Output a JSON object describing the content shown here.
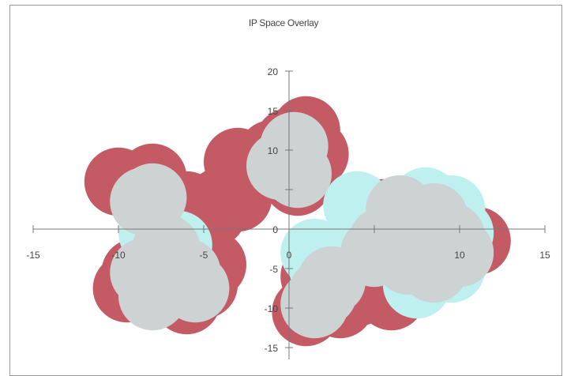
{
  "chart_data": {
    "type": "scatter",
    "title": "IP Space Overlay",
    "xlabel": "",
    "ylabel": "",
    "xlim": [
      -15,
      15
    ],
    "ylim": [
      -15,
      20
    ],
    "x_ticks": [
      -15,
      -10,
      -5,
      0,
      5,
      10,
      15
    ],
    "y_ticks": [
      -15,
      -10,
      -5,
      0,
      5,
      10,
      15,
      20
    ],
    "x_tick_labels": [
      "-15",
      "-10",
      "-5",
      "0",
      "",
      "10",
      "15"
    ],
    "y_tick_labels": [
      "-15",
      "-10",
      "-5",
      "0",
      "",
      "10",
      "15",
      "20"
    ],
    "grid": false,
    "legend": "none",
    "series": [
      {
        "color": "#c45a64",
        "points": [
          [
            -9,
            5
          ],
          [
            -8,
            6.5
          ],
          [
            -10,
            6
          ],
          [
            -8.5,
            3.5
          ],
          [
            -6,
            3
          ],
          [
            -4.5,
            2
          ],
          [
            -4,
            3.5
          ],
          [
            -3,
            4
          ],
          [
            -2.5,
            7
          ],
          [
            -3,
            8.5
          ],
          [
            -1,
            9.5
          ],
          [
            0,
            11
          ],
          [
            1,
            12.5
          ],
          [
            1.5,
            9.5
          ],
          [
            0.5,
            6
          ],
          [
            -8,
            -4
          ],
          [
            -9,
            -5.5
          ],
          [
            -9.5,
            -7.5
          ],
          [
            -7.5,
            -8
          ],
          [
            -6,
            -9
          ],
          [
            -5,
            -7
          ],
          [
            -4.5,
            -4.5
          ],
          [
            -6.5,
            -3.5
          ],
          [
            1.5,
            -6
          ],
          [
            2.5,
            -7.5
          ],
          [
            3,
            -9.5
          ],
          [
            1,
            -10.5
          ],
          [
            4,
            -8
          ],
          [
            5.5,
            2
          ],
          [
            6.5,
            -3
          ],
          [
            7.5,
            -6
          ],
          [
            9,
            -4
          ],
          [
            10,
            -2
          ],
          [
            11,
            -1.5
          ],
          [
            9,
            0
          ],
          [
            6,
            -8.5
          ],
          [
            5.5,
            0
          ]
        ],
        "radius": 2
      },
      {
        "color": "#bff0f0",
        "points": [
          [
            4,
            3
          ],
          [
            8,
            3.5
          ],
          [
            9.5,
            2.5
          ],
          [
            10,
            -0.5
          ],
          [
            9.5,
            -5
          ],
          [
            7.5,
            -7
          ],
          [
            -8,
            -0.5
          ],
          [
            -6.5,
            -2
          ],
          [
            1.5,
            -3
          ],
          [
            2,
            -5
          ]
        ],
        "radius": 2
      },
      {
        "color": "#cdd3d3",
        "points": [
          [
            -8,
            4
          ],
          [
            -8.5,
            3.5
          ],
          [
            0,
            9
          ],
          [
            0.3,
            10.5
          ],
          [
            -0.5,
            8
          ],
          [
            0.5,
            7
          ],
          [
            -7.5,
            -4
          ],
          [
            -8.5,
            -5.5
          ],
          [
            -7,
            -7
          ],
          [
            -8,
            -8.5
          ],
          [
            -6,
            -5.5
          ],
          [
            -5.5,
            -7.5
          ],
          [
            -7.2,
            -2.5
          ],
          [
            2,
            -8
          ],
          [
            1.5,
            -9.5
          ],
          [
            2.5,
            -6.5
          ],
          [
            5.5,
            -1.5
          ],
          [
            7,
            1
          ],
          [
            8.5,
            1.5
          ],
          [
            8,
            -2
          ],
          [
            9.5,
            -1
          ],
          [
            7,
            -4
          ],
          [
            8.5,
            -5
          ],
          [
            10,
            -3
          ],
          [
            5,
            -3
          ],
          [
            6.5,
            2.5
          ]
        ],
        "radius": 2
      }
    ]
  }
}
